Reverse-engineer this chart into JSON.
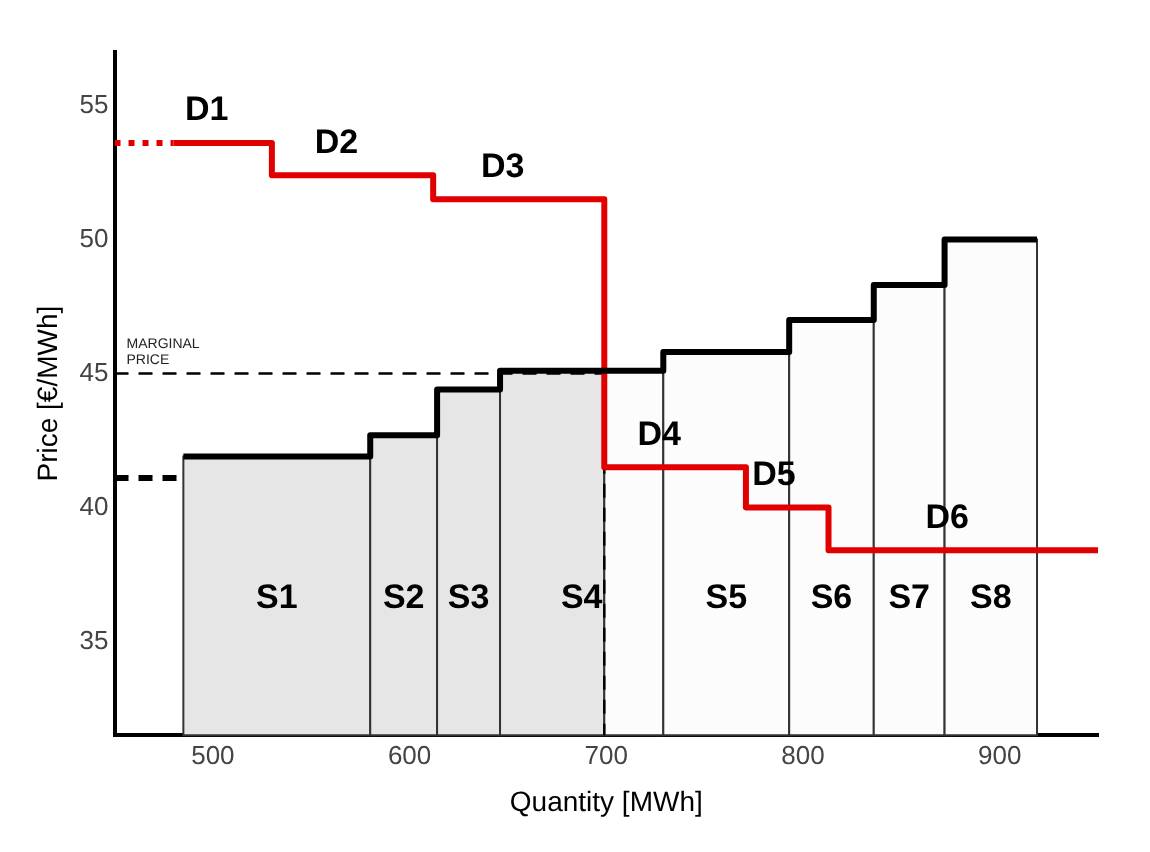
{
  "chart_data": {
    "type": "step",
    "xlabel": "Quantity [MWh]",
    "ylabel": "Price [€/MWh]",
    "xlim": [
      450,
      950
    ],
    "ylim": [
      31.5,
      57
    ],
    "xticks": [
      500,
      600,
      700,
      800,
      900
    ],
    "yticks": [
      35,
      40,
      45,
      50,
      55
    ],
    "grid": false,
    "legend": false,
    "marker": "none",
    "series": [
      {
        "color": "#000000",
        "x": [
          485,
          580,
          614,
          646,
          729,
          793,
          836,
          872,
          919
        ],
        "values": [
          41.9,
          42.7,
          44.4,
          45.1,
          45.8,
          47.0,
          48.3,
          50.0,
          50.0
        ]
      },
      {
        "color": "#e00000",
        "x": [
          480,
          530,
          612,
          699,
          771,
          813,
          950
        ],
        "values": [
          53.6,
          52.4,
          51.5,
          41.5,
          40.0,
          38.4,
          38.4
        ]
      },
      {
        "color": "#e00000",
        "line_style": "dotted",
        "x": [
          450,
          480
        ],
        "values": [
          53.6,
          53.6
        ]
      },
      {
        "color": "#000000",
        "line_style": "dashed",
        "x": [
          450,
          482
        ],
        "values": [
          41.1,
          41.1
        ]
      }
    ],
    "ref_lines": [
      {
        "axis": "y",
        "value": 45,
        "label": "MARGINAL PRICE",
        "color": "#000000",
        "line_style": "dashed"
      }
    ],
    "bands": [
      {
        "axis": "x",
        "from": 485,
        "to": 580,
        "color": "#e6e6e6"
      },
      {
        "axis": "x",
        "from": 580,
        "to": 614,
        "color": "#e6e6e6"
      },
      {
        "axis": "x",
        "from": 614,
        "to": 646,
        "color": "#e6e6e6"
      },
      {
        "axis": "x",
        "from": 646,
        "to": 699,
        "color": "#e6e6e6"
      },
      {
        "axis": "x",
        "from": 699,
        "to": 729,
        "color": "#fcfcfc"
      },
      {
        "axis": "x",
        "from": 729,
        "to": 793,
        "color": "#fcfcfc"
      },
      {
        "axis": "x",
        "from": 793,
        "to": 836,
        "color": "#fcfcfc"
      },
      {
        "axis": "x",
        "from": 836,
        "to": 872,
        "color": "#fcfcfc"
      },
      {
        "axis": "x",
        "from": 872,
        "to": 919,
        "color": "#fcfcfc"
      }
    ],
    "annotations": [
      "S1",
      "S2",
      "S3",
      "S4",
      "S5",
      "S6",
      "S7",
      "S8",
      "D1",
      "D2",
      "D3",
      "D4",
      "D5",
      "D6"
    ]
  }
}
